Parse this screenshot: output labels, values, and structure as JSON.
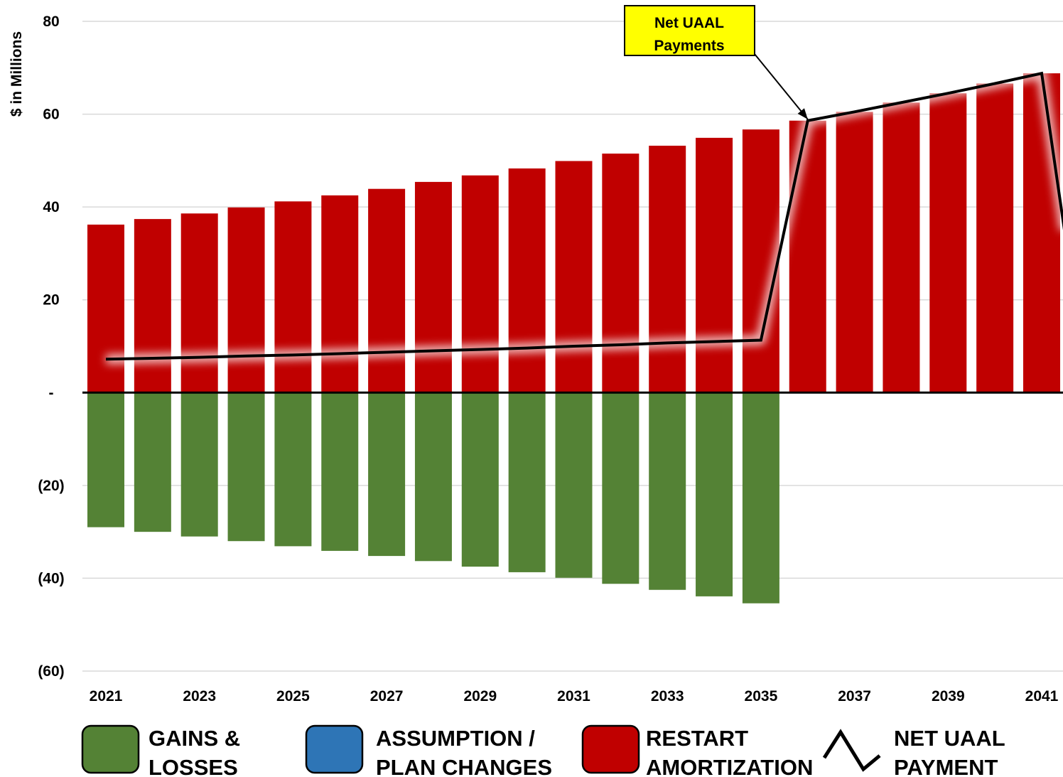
{
  "chart_data": {
    "type": "bar",
    "ylabel": "$ in Millions",
    "ylim": [
      -60,
      80
    ],
    "yticks": [
      80,
      60,
      40,
      20,
      0,
      -20,
      -40,
      -60
    ],
    "ytick_labels": [
      "80",
      "60",
      "40",
      "20",
      "-",
      "(20)",
      "(40)",
      "(60)"
    ],
    "categories": [
      "2021",
      "2022",
      "2023",
      "2024",
      "2025",
      "2026",
      "2027",
      "2028",
      "2029",
      "2030",
      "2031",
      "2032",
      "2033",
      "2034",
      "2035",
      "2036",
      "2037",
      "2038",
      "2039",
      "2040",
      "2041"
    ],
    "xtick_labels": [
      "2021",
      "",
      "2023",
      "",
      "2025",
      "",
      "2027",
      "",
      "2029",
      "",
      "2031",
      "",
      "2033",
      "",
      "2035",
      "",
      "2037",
      "",
      "2039",
      "",
      "2041"
    ],
    "series": [
      {
        "name": "GAINS & LOSSES",
        "color": "#548235",
        "values": [
          -29.0,
          -30.0,
          -31.0,
          -32.0,
          -33.1,
          -34.1,
          -35.2,
          -36.3,
          -37.5,
          -38.7,
          -39.9,
          -41.2,
          -42.5,
          -43.9,
          -45.4,
          0,
          0,
          0,
          0,
          0,
          0
        ]
      },
      {
        "name": "ASSUMPTION / PLAN CHANGES",
        "color": "#2E75B6",
        "values": [
          0,
          0,
          0,
          0,
          0,
          0,
          0,
          0,
          0,
          0,
          0,
          0,
          0,
          0,
          0,
          0,
          0,
          0,
          0,
          0,
          0
        ]
      },
      {
        "name": "RESTART AMORTIZATION",
        "color": "#C00000",
        "values": [
          36.2,
          37.4,
          38.6,
          39.9,
          41.2,
          42.5,
          43.9,
          45.4,
          46.8,
          48.3,
          49.9,
          51.5,
          53.2,
          54.9,
          56.7,
          58.6,
          60.5,
          62.5,
          64.5,
          66.6,
          68.8
        ]
      },
      {
        "name": "NET UAAL PAYMENT",
        "color": "#000000",
        "type": "line",
        "values": [
          7.2,
          7.4,
          7.6,
          7.9,
          8.1,
          8.4,
          8.7,
          9.0,
          9.3,
          9.6,
          10.0,
          10.3,
          10.7,
          11.0,
          11.3,
          58.6,
          60.5,
          62.5,
          64.5,
          66.6,
          68.8
        ]
      }
    ],
    "annotation": {
      "text_lines": [
        "Net UAAL",
        "Payments"
      ],
      "points_to": "2036"
    },
    "legend": {
      "position": "bottom",
      "items": [
        {
          "lines": [
            "GAINS &",
            "LOSSES"
          ],
          "color": "#548235",
          "kind": "box"
        },
        {
          "lines": [
            "ASSUMPTION /",
            "PLAN CHANGES"
          ],
          "color": "#2E75B6",
          "kind": "box"
        },
        {
          "lines": [
            "RESTART",
            "AMORTIZATION"
          ],
          "color": "#C00000",
          "kind": "box"
        },
        {
          "lines": [
            "NET UAAL",
            "PAYMENT"
          ],
          "color": "#000000",
          "kind": "line"
        }
      ]
    }
  }
}
